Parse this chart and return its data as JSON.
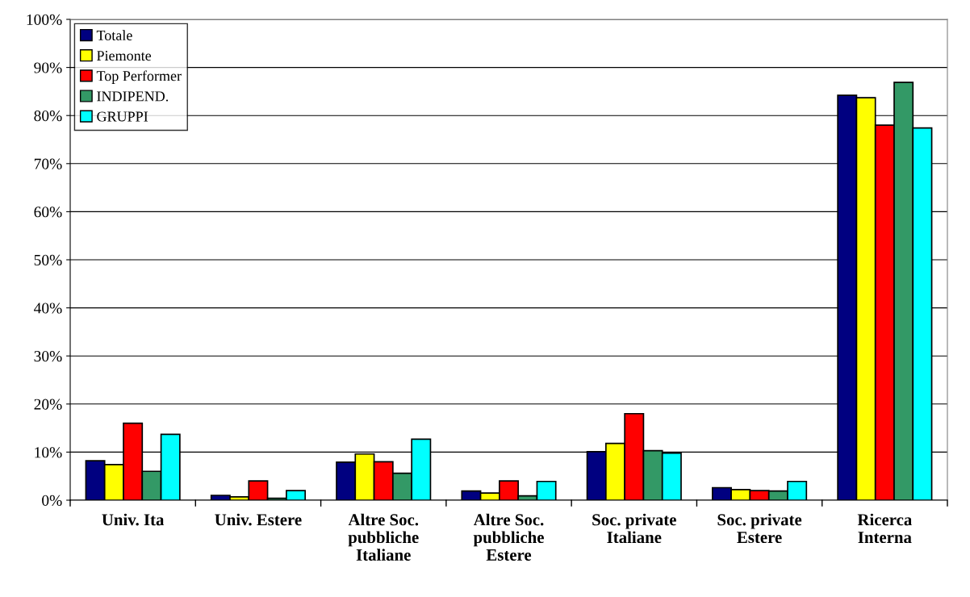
{
  "chart_data": {
    "type": "bar",
    "categories": [
      "Univ. Ita",
      "Univ. Estere",
      "Altre Soc.\npubbliche\nItaliane",
      "Altre Soc.\npubbliche\nEstere",
      "Soc. private\nItaliane",
      "Soc. private\nEstere",
      "Ricerca\nInterna"
    ],
    "series": [
      {
        "name": "Totale",
        "color": "#000080",
        "values": [
          8.2,
          1.0,
          7.9,
          1.9,
          10.1,
          2.6,
          84.2
        ]
      },
      {
        "name": "Piemonte",
        "color": "#ffff00",
        "values": [
          7.4,
          0.7,
          9.6,
          1.5,
          11.8,
          2.2,
          83.7
        ]
      },
      {
        "name": "Top Performer",
        "color": "#ff0000",
        "values": [
          16,
          4,
          8,
          4,
          18,
          2,
          78
        ]
      },
      {
        "name": "INDIPEND.",
        "color": "#339966",
        "values": [
          6,
          0.4,
          5.6,
          0.9,
          10.3,
          1.9,
          86.9
        ]
      },
      {
        "name": "GRUPPI",
        "color": "#00ffff",
        "values": [
          13.7,
          2,
          12.7,
          3.9,
          9.8,
          3.9,
          77.4
        ]
      }
    ],
    "ylim": [
      0,
      100
    ],
    "yticks": [
      {
        "value": 0,
        "label": "0%"
      },
      {
        "value": 10,
        "label": "10%"
      },
      {
        "value": 20,
        "label": "20%"
      },
      {
        "value": 30,
        "label": "30%"
      },
      {
        "value": 40,
        "label": "40%"
      },
      {
        "value": 50,
        "label": "50%"
      },
      {
        "value": 60,
        "label": "60%"
      },
      {
        "value": 70,
        "label": "70%"
      },
      {
        "value": 80,
        "label": "80%"
      },
      {
        "value": 90,
        "label": "90%"
      },
      {
        "value": 100,
        "label": "100%"
      }
    ],
    "grid": "y",
    "legend": "top left"
  }
}
